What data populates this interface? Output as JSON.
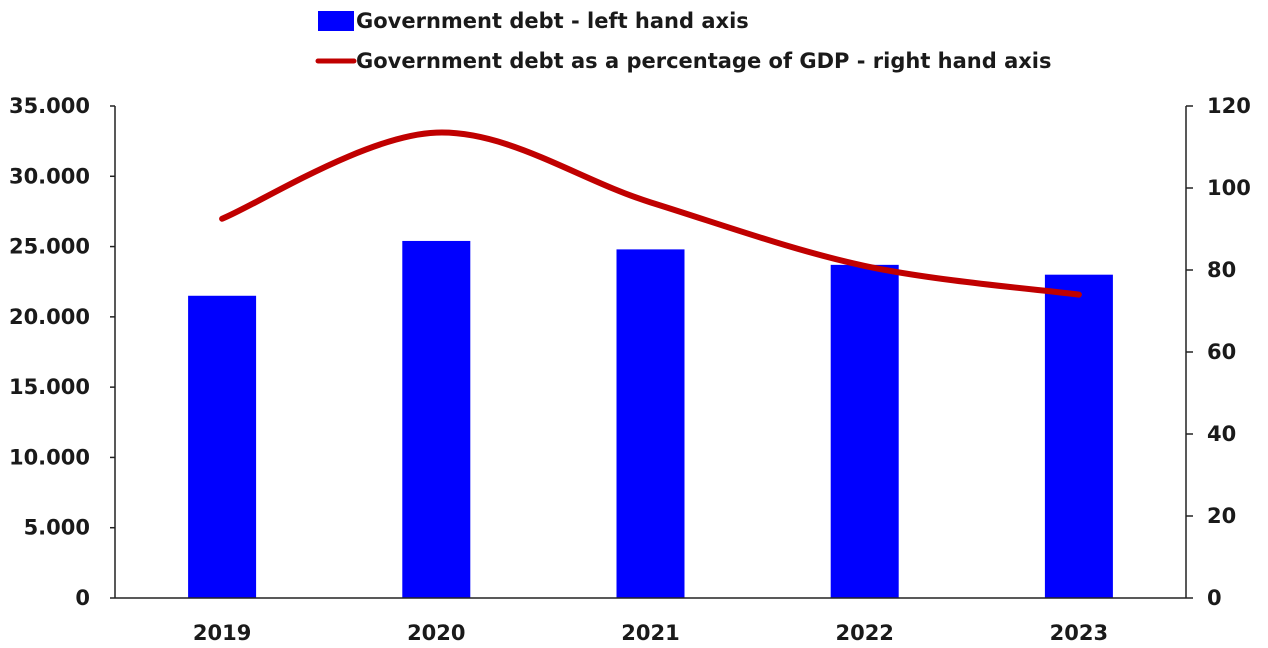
{
  "chart_data": {
    "type": "bar",
    "categories": [
      "2019",
      "2020",
      "2021",
      "2022",
      "2023"
    ],
    "series": [
      {
        "name": "Government debt - left hand axis",
        "type": "bar",
        "axis": "left",
        "color": "#0000ff",
        "values": [
          21500,
          25400,
          24800,
          23700,
          23000
        ]
      },
      {
        "name": "Government debt as a percentage of GDP - right hand axis",
        "type": "line",
        "smooth": true,
        "axis": "right",
        "color": "#c00000",
        "values": [
          92.5,
          113.5,
          96.5,
          81.0,
          74.0
        ]
      }
    ],
    "y_left": {
      "ylim": [
        0,
        35000
      ],
      "ticks": [
        0,
        5000,
        10000,
        15000,
        20000,
        25000,
        30000,
        35000
      ],
      "tick_labels": [
        "0",
        "5.000",
        "10.000",
        "15.000",
        "20.000",
        "25.000",
        "30.000",
        "35.000"
      ]
    },
    "y_right": {
      "ylim": [
        0,
        120
      ],
      "ticks": [
        0,
        20,
        40,
        60,
        80,
        100,
        120
      ],
      "tick_labels": [
        "0",
        "20",
        "40",
        "60",
        "80",
        "100",
        "120"
      ]
    },
    "legend_position": "top-center",
    "grid": false,
    "title": "",
    "xlabel": "",
    "ylabel": ""
  }
}
